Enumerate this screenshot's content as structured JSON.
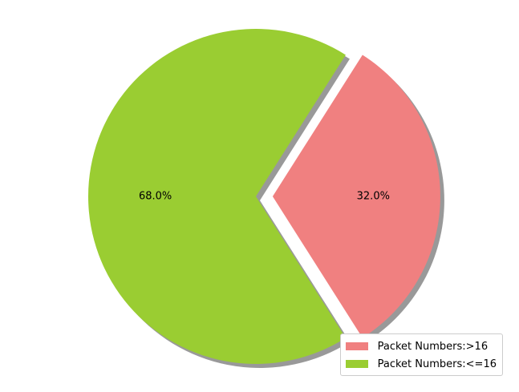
{
  "chart_data": {
    "type": "pie",
    "slices": [
      {
        "label": "Packet Numbers:>16",
        "value": 32.0,
        "pct_label": "32.0%",
        "color": "#F08080",
        "exploded": true
      },
      {
        "label": "Packet Numbers:<=16",
        "value": 68.0,
        "pct_label": "68.0%",
        "color": "#9ACD32",
        "exploded": false
      }
    ],
    "shadow": true,
    "legend_position": "lower-right",
    "start_angle_deg": 57.6,
    "title": ""
  }
}
